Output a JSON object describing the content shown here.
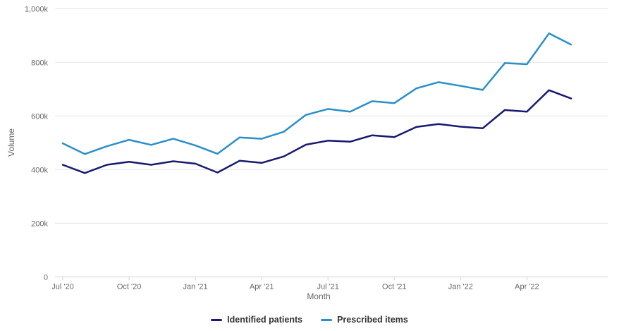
{
  "chart_data": {
    "type": "line",
    "title": "",
    "xlabel": "Month",
    "ylabel": "Volume",
    "x": [
      "Jul '20",
      "Aug '20",
      "Sep '20",
      "Oct '20",
      "Nov '20",
      "Dec '20",
      "Jan '21",
      "Feb '21",
      "Mar '21",
      "Apr '21",
      "May '21",
      "Jun '21",
      "Jul '21",
      "Aug '21",
      "Sep '21",
      "Oct '21",
      "Nov '21",
      "Dec '21",
      "Jan '22",
      "Feb '22",
      "Mar '22",
      "Apr '22",
      "May '22",
      "Jun '22"
    ],
    "xtick_labels": [
      "Jul '20",
      "Oct '20",
      "Jan '21",
      "Apr '21",
      "Jul '21",
      "Oct '21",
      "Jan '22",
      "Apr '22"
    ],
    "xtick_every": 3,
    "ylim": [
      0,
      1000
    ],
    "y_unit": "k",
    "ytick_values": [
      0,
      200,
      400,
      600,
      800,
      1000
    ],
    "ytick_labels": [
      "0",
      "200k",
      "400k",
      "600k",
      "800k",
      "1,000k"
    ],
    "grid": "horizontal",
    "legend_position": "bottom",
    "series": [
      {
        "name": "Identified patients",
        "color": "#191970",
        "values": [
          418,
          387,
          418,
          429,
          418,
          431,
          422,
          389,
          433,
          425,
          449,
          493,
          508,
          504,
          528,
          521,
          559,
          570,
          560,
          554,
          622,
          616,
          696,
          665
        ]
      },
      {
        "name": "Prescribed items",
        "color": "#298FCA",
        "values": [
          498,
          458,
          487,
          511,
          492,
          515,
          490,
          459,
          520,
          515,
          541,
          604,
          626,
          616,
          655,
          648,
          703,
          726,
          712,
          697,
          797,
          793,
          908,
          866
        ]
      }
    ]
  },
  "styles": {
    "background": "#ffffff",
    "axis_text_color": "#666666",
    "legend_text_color": "#333333",
    "grid_color": "#e6e6e6",
    "axis_line_color": "#ccd2dd"
  }
}
